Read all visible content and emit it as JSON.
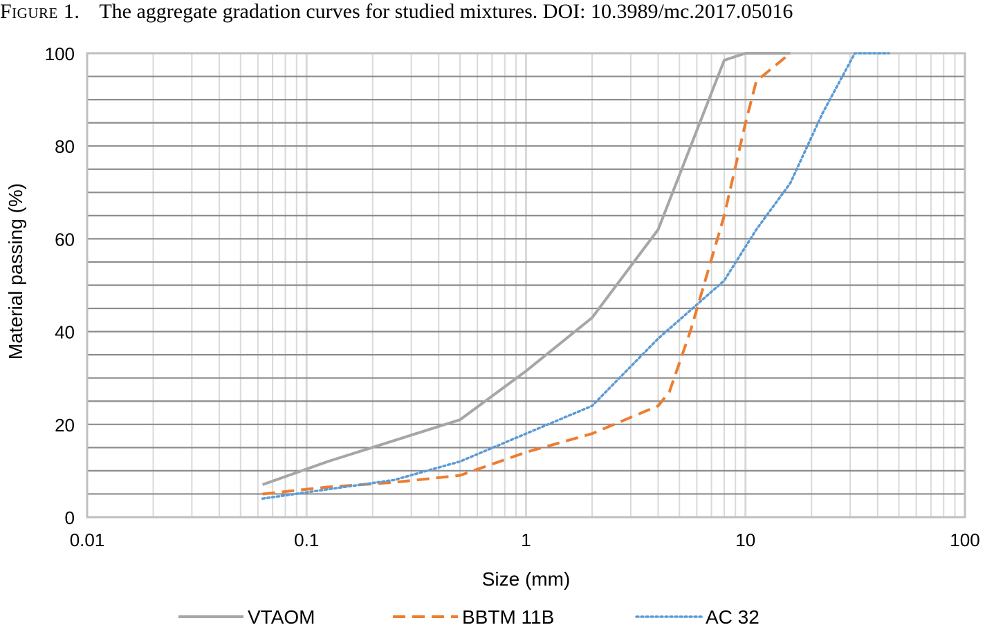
{
  "caption": {
    "figure_label": "Figure 1.",
    "text": "The aggregate gradation curves for studied mixtures. DOI: 10.3989/mc.2017.05016"
  },
  "chart_data": {
    "type": "line",
    "x_scale": "log",
    "xlim": [
      0.01,
      100
    ],
    "ylim": [
      0,
      100
    ],
    "xticks": [
      {
        "value": 0.01,
        "label": "0.01"
      },
      {
        "value": 0.1,
        "label": "0.1"
      },
      {
        "value": 1,
        "label": "1"
      },
      {
        "value": 10,
        "label": "10"
      },
      {
        "value": 100,
        "label": "100"
      }
    ],
    "yticks": [
      {
        "value": 0,
        "label": "0"
      },
      {
        "value": 20,
        "label": "20"
      },
      {
        "value": 40,
        "label": "40"
      },
      {
        "value": 60,
        "label": "60"
      },
      {
        "value": 80,
        "label": "80"
      },
      {
        "value": 100,
        "label": "100"
      }
    ],
    "grid": true,
    "xlabel": "Size (mm)",
    "ylabel": "Material passing (%)",
    "legend_position": "bottom",
    "series": [
      {
        "name": "VTAOM",
        "color": "#a6a6a6",
        "style": "solid",
        "x": [
          0.063,
          0.125,
          0.25,
          0.5,
          1,
          2,
          4,
          8,
          10,
          16
        ],
        "y": [
          7,
          12,
          16.5,
          21,
          31.5,
          43,
          62,
          98.5,
          100,
          100
        ]
      },
      {
        "name": "BBTM 11B",
        "color": "#ed7d31",
        "style": "dashed",
        "x": [
          0.063,
          0.125,
          0.25,
          0.5,
          1,
          2,
          4,
          4.5,
          5.6,
          8,
          10,
          11.2,
          16
        ],
        "y": [
          5,
          6.5,
          7.5,
          9,
          14,
          18,
          24,
          27,
          40,
          65,
          85,
          94,
          100
        ]
      },
      {
        "name": "AC 32",
        "color": "#5b9bd5",
        "style": "dotted",
        "x": [
          0.063,
          0.125,
          0.25,
          0.5,
          1,
          2,
          4,
          8,
          11.2,
          16,
          22.4,
          31.5,
          45
        ],
        "y": [
          4,
          6,
          8,
          12,
          18,
          24,
          38.5,
          51,
          62,
          72,
          87,
          100,
          100
        ]
      }
    ]
  }
}
